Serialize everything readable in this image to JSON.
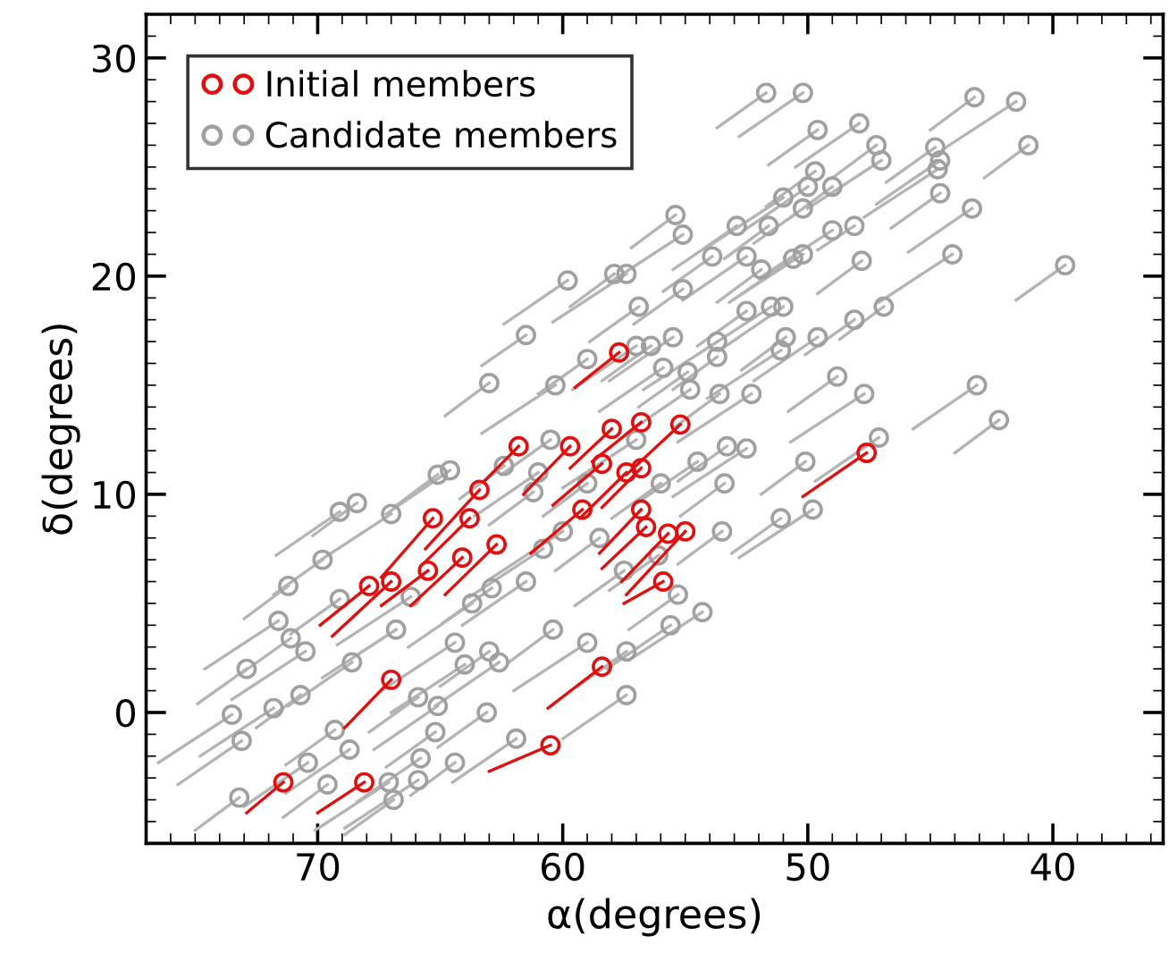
{
  "chart_data": {
    "type": "scatter",
    "xlabel": "α(degrees)",
    "ylabel": "δ(degrees)",
    "xlim": [
      77,
      35.5
    ],
    "xticks": [
      70,
      60,
      50,
      40
    ],
    "ylim": [
      -6,
      32
    ],
    "yticks": [
      0,
      10,
      20,
      30
    ],
    "grid": false,
    "legend": "top left",
    "marker": "circle",
    "series": [
      {
        "name": "Initial members",
        "color": "#e01010",
        "x": [
          57.7,
          56.8,
          55.2,
          58.0,
          59.7,
          61.8,
          58.4,
          56.8,
          57.4,
          63.4,
          65.3,
          63.8,
          59.2,
          56.8,
          62.7,
          64.1,
          55.0,
          56.6,
          55.7,
          55.9,
          65.5,
          67.0,
          67.9,
          47.6,
          67.0,
          58.4,
          60.5,
          71.4,
          68.1
        ],
        "values": [
          16.5,
          13.3,
          13.2,
          13.0,
          12.2,
          12.2,
          11.4,
          11.2,
          11.0,
          10.2,
          8.9,
          8.9,
          9.3,
          9.3,
          7.7,
          7.1,
          8.3,
          8.5,
          8.2,
          6.0,
          6.5,
          6.0,
          5.8,
          11.9,
          1.5,
          2.1,
          -1.5,
          -3.2,
          -3.2
        ]
      },
      {
        "type": "line",
        "marker": "none",
        "color": "#e01010",
        "x": [
          59.5,
          57.7,
          null,
          58.8,
          56.8,
          null,
          57.4,
          55.2,
          null,
          59.7,
          58.0,
          null,
          61.6,
          59.7,
          null,
          63.2,
          61.8,
          null,
          60.4,
          58.4,
          null,
          58.4,
          56.8,
          null,
          59.3,
          57.4,
          null,
          65.6,
          63.4,
          null,
          67.4,
          65.3,
          null,
          65.7,
          63.8,
          null,
          61.3,
          59.2,
          null,
          58.5,
          56.8,
          null,
          64.8,
          62.7,
          null,
          66.2,
          64.1,
          null,
          57.4,
          55.0,
          null,
          58.4,
          56.6,
          null,
          57.6,
          55.7,
          null,
          57.5,
          55.9,
          null,
          67.4,
          65.5,
          null,
          69.4,
          67.0,
          null,
          69.9,
          67.9,
          null,
          50.2,
          47.6,
          null,
          68.9,
          67.0,
          null,
          60.6,
          58.4,
          null,
          63.0,
          60.5,
          null,
          72.9,
          71.4,
          null,
          70.0,
          68.1
        ],
        "values": [
          14.9,
          16.5,
          null,
          11.5,
          13.3,
          null,
          10.9,
          13.2,
          null,
          11.2,
          13.0,
          null,
          10.0,
          12.2,
          null,
          10.6,
          12.2,
          null,
          9.5,
          11.4,
          null,
          9.4,
          11.2,
          null,
          8.9,
          11.0,
          null,
          7.5,
          10.2,
          null,
          6.2,
          8.9,
          null,
          6.8,
          8.9,
          null,
          7.3,
          9.3,
          null,
          7.3,
          9.3,
          null,
          5.4,
          7.7,
          null,
          4.9,
          7.1,
          null,
          5.4,
          8.3,
          null,
          6.6,
          8.5,
          null,
          6.0,
          8.2,
          null,
          5.0,
          6.0,
          null,
          4.9,
          6.5,
          null,
          3.5,
          6.0,
          null,
          4.0,
          5.8,
          null,
          9.9,
          11.9,
          null,
          -0.7,
          1.5,
          null,
          0.2,
          2.1,
          null,
          -2.7,
          -1.5,
          null,
          -4.6,
          -3.2,
          null,
          -4.6,
          -3.2
        ]
      },
      {
        "name": "Candidate members",
        "color": "#a0a0a0",
        "x": [
          51.7,
          50.2,
          43.2,
          41.5,
          49.6,
          47.9,
          47.2,
          47.0,
          44.8,
          44.6,
          41.0,
          44.7,
          44.6,
          43.3,
          49.0,
          49.0,
          50.2,
          50.6,
          47.8,
          44.1,
          39.5,
          51.0,
          46.9,
          53.7,
          48.1,
          43.1,
          42.2,
          47.7,
          48.8,
          49.6,
          50.9,
          50.2,
          48.1,
          55.1,
          52.9,
          51.6,
          51.0,
          49.7,
          50.0,
          55.4,
          55.1,
          53.9,
          52.5,
          51.9,
          51.5,
          52.5,
          55.5,
          53.7,
          51.1,
          54.9,
          54.8,
          53.6,
          52.3,
          56.4,
          55.9,
          73.2,
          73.5,
          72.9,
          73.1,
          71.2,
          71.6,
          69.8,
          69.1,
          68.4,
          70.5,
          69.1,
          68.6,
          70.7,
          71.8,
          69.3,
          70.4,
          69.6,
          67.1,
          66.9,
          68.7,
          66.8,
          65.9,
          65.1,
          64.0,
          63.0,
          62.6,
          64.4,
          65.2,
          65.8,
          64.4,
          65.9,
          63.1,
          61.9,
          60.4,
          59.0,
          57.4,
          57.4,
          61.2,
          60.0,
          62.9,
          63.7,
          65.1,
          67.0,
          71.1,
          64.6,
          62.4,
          66.2,
          56.1,
          47.1,
          50.1,
          49.8,
          51.1,
          53.5,
          54.3,
          55.3,
          55.6,
          53.4,
          52.5,
          53.3,
          59.8,
          57.9,
          57.4,
          56.9,
          61.5,
          63.0,
          60.3,
          59.0,
          57.0,
          60.5,
          61.0,
          59.0,
          57.0,
          56.0,
          54.5,
          58.5,
          60.8,
          57.5,
          61.5
        ],
        "values": [
          28.4,
          28.4,
          28.2,
          28.0,
          26.7,
          27.0,
          26.0,
          25.3,
          25.9,
          25.3,
          26.0,
          24.9,
          23.8,
          23.1,
          24.1,
          22.1,
          23.1,
          20.8,
          20.7,
          21.0,
          20.5,
          18.6,
          18.6,
          17.0,
          18.0,
          15.0,
          13.4,
          14.6,
          15.4,
          17.2,
          17.2,
          21.0,
          22.3,
          19.4,
          22.3,
          22.3,
          23.6,
          24.8,
          24.1,
          22.8,
          21.9,
          20.9,
          20.9,
          20.3,
          18.6,
          18.4,
          17.2,
          16.3,
          16.6,
          15.6,
          14.8,
          14.6,
          14.6,
          16.8,
          15.8,
          -3.9,
          -0.1,
          2.0,
          -1.3,
          5.8,
          4.2,
          7.0,
          9.2,
          9.6,
          2.8,
          5.2,
          2.3,
          0.8,
          0.2,
          -0.8,
          -2.3,
          -3.3,
          -3.2,
          -4.0,
          -1.7,
          3.8,
          0.7,
          0.3,
          2.2,
          2.8,
          2.3,
          3.2,
          -0.9,
          -2.1,
          -2.3,
          -3.1,
          0.0,
          -1.2,
          3.8,
          3.2,
          2.8,
          0.8,
          10.1,
          8.3,
          5.7,
          5.0,
          10.9,
          9.1,
          3.4,
          11.1,
          11.3,
          5.3,
          7.2,
          12.6,
          11.5,
          9.3,
          8.9,
          8.3,
          4.6,
          5.4,
          4.0,
          10.5,
          12.1,
          12.2,
          19.8,
          20.1,
          20.1,
          18.6,
          17.3,
          15.1,
          15.0,
          16.2,
          16.8,
          12.5,
          11.0,
          10.5,
          12.5,
          10.5,
          11.5,
          8.0,
          7.5,
          6.5,
          6.0
        ]
      },
      {
        "type": "line",
        "marker": "none",
        "color": "#b4b4b4",
        "x": [
          53.7,
          51.7,
          null,
          52.8,
          50.2,
          null,
          45.0,
          43.2,
          null,
          44.5,
          41.5,
          null,
          51.6,
          49.6,
          null,
          50.5,
          47.9,
          null,
          49.0,
          47.2,
          null,
          50.0,
          47.0,
          null,
          46.8,
          44.8,
          null,
          47.2,
          44.6,
          null,
          42.8,
          41.0,
          null,
          47.7,
          44.7,
          null,
          46.6,
          44.6,
          null,
          45.9,
          43.3,
          null,
          50.8,
          49.0,
          null,
          52.0,
          49.0,
          null,
          52.2,
          50.2,
          null,
          53.2,
          50.6,
          null,
          49.6,
          47.8,
          null,
          47.1,
          44.1,
          null,
          41.5,
          39.5,
          null,
          53.6,
          51.0,
          null,
          48.7,
          46.9,
          null,
          56.7,
          53.7,
          null,
          50.1,
          48.1,
          null,
          45.7,
          43.1,
          null,
          44.0,
          42.2,
          null,
          50.7,
          47.7,
          null,
          50.8,
          48.8,
          null,
          52.2,
          49.6,
          null,
          52.7,
          50.9,
          null,
          53.2,
          50.2,
          null,
          49.6,
          48.1,
          null,
          57.1,
          55.1,
          null,
          55.5,
          52.9,
          null,
          53.4,
          51.6,
          null,
          54.0,
          51.0,
          null,
          51.7,
          49.7,
          null,
          52.6,
          50.0,
          null,
          57.2,
          55.4,
          null,
          58.1,
          55.1,
          null,
          55.9,
          53.9,
          null,
          55.1,
          52.5,
          null,
          53.7,
          51.9,
          null,
          54.5,
          51.5,
          null,
          54.5,
          52.5,
          null,
          58.1,
          55.5,
          null,
          55.5,
          53.7,
          null,
          54.1,
          51.1,
          null,
          56.9,
          54.9,
          null,
          57.4,
          54.8,
          null,
          55.4,
          53.6,
          null,
          55.3,
          52.3,
          null,
          58.4,
          56.4,
          null,
          58.5,
          55.9,
          null,
          75.0,
          73.2,
          null,
          76.5,
          73.5,
          null,
          74.9,
          72.9,
          null,
          75.7,
          73.1,
          null,
          73.0,
          71.2,
          null,
          74.6,
          71.6,
          null,
          71.8,
          69.8,
          null,
          71.7,
          69.1,
          null,
          70.2,
          68.4,
          null,
          73.5,
          70.5,
          null,
          71.1,
          69.1,
          null,
          71.2,
          68.6,
          null,
          72.5,
          70.7,
          null,
          74.8,
          71.8,
          null,
          71.3,
          69.3,
          null,
          73.0,
          70.4,
          null,
          71.4,
          69.6,
          null,
          70.1,
          67.1,
          null,
          68.9,
          66.9,
          null,
          71.3,
          68.7,
          null,
          69.8,
          66.8,
          null,
          67.9,
          65.9,
          null,
          67.7,
          65.1,
          null,
          67.0,
          64.0,
          null,
          65.0,
          63.0,
          null,
          65.2,
          62.6,
          null,
          67.4,
          64.4,
          null,
          67.2,
          65.2,
          null,
          68.4,
          65.8,
          null,
          66.2,
          64.4,
          null,
          68.9,
          65.9,
          null,
          65.1,
          63.1,
          null,
          64.5,
          61.9,
          null,
          62.2,
          60.4,
          null,
          62.0,
          59.0,
          null,
          59.4,
          57.4,
          null,
          60.0,
          57.4,
          null,
          63.0,
          61.2,
          null,
          63.0,
          60.0,
          null,
          64.9,
          62.9,
          null,
          66.3,
          63.7,
          null,
          66.9,
          65.1,
          null,
          70.0,
          67.0,
          null,
          73.1,
          71.1,
          null,
          67.2,
          64.6,
          null,
          64.2,
          62.4,
          null,
          69.2,
          66.2,
          null,
          58.1,
          56.1,
          null,
          49.7,
          47.1,
          null,
          51.9,
          50.1,
          null,
          52.8,
          49.8,
          null,
          53.1,
          51.1,
          null,
          55.3,
          53.5,
          null,
          57.3,
          54.3,
          null,
          57.3,
          55.3,
          null,
          58.2,
          55.6,
          null,
          55.2,
          53.4,
          null,
          55.5,
          52.5,
          null,
          55.3,
          53.3,
          null,
          62.4,
          59.8,
          null,
          59.7,
          57.9,
          null,
          60.4,
          57.4,
          null,
          58.9,
          56.9,
          null,
          63.3,
          61.5,
          null,
          64.8,
          63.0,
          null,
          63.3,
          60.3,
          null,
          61.0,
          59.0,
          null,
          59.6,
          57.0,
          null,
          62.5,
          60.5,
          null,
          63.6,
          61.0,
          null,
          60.8,
          59.0,
          null,
          60.0,
          57.0,
          null,
          58.0,
          56.0,
          null,
          57.1,
          54.5,
          null,
          60.3,
          58.5,
          null,
          63.8,
          60.8,
          null,
          59.5,
          57.5,
          null,
          64.1,
          61.5
        ],
        "values": [
          26.8,
          28.4,
          null,
          26.4,
          28.4,
          null,
          26.7,
          28.2,
          null,
          25.8,
          28.0,
          null,
          25.1,
          26.7,
          null,
          25.0,
          27.0,
          null,
          24.5,
          26.0,
          null,
          23.1,
          25.3,
          null,
          24.3,
          25.9,
          null,
          23.3,
          25.3,
          null,
          24.5,
          26.0,
          null,
          22.7,
          24.9,
          null,
          22.2,
          23.8,
          null,
          21.1,
          23.1,
          null,
          22.6,
          24.1,
          null,
          19.9,
          22.1,
          null,
          21.5,
          23.1,
          null,
          18.8,
          20.8,
          null,
          19.2,
          20.7,
          null,
          18.8,
          21.0,
          null,
          18.9,
          20.5,
          null,
          16.6,
          18.6,
          null,
          17.1,
          18.6,
          null,
          14.8,
          17.0,
          null,
          16.4,
          18.0,
          null,
          13.0,
          15.0,
          null,
          11.9,
          13.4,
          null,
          12.4,
          14.6,
          null,
          13.8,
          15.4,
          null,
          15.2,
          17.2,
          null,
          15.7,
          17.2,
          null,
          18.8,
          21.0,
          null,
          21.2,
          22.3,
          null,
          17.8,
          19.4,
          null,
          20.3,
          22.3,
          null,
          20.8,
          22.3,
          null,
          21.4,
          23.6,
          null,
          23.2,
          24.8,
          null,
          22.1,
          24.1,
          null,
          21.3,
          22.8,
          null,
          19.7,
          21.9,
          null,
          19.3,
          20.9,
          null,
          18.9,
          20.9,
          null,
          18.8,
          20.3,
          null,
          16.4,
          18.6,
          null,
          16.8,
          18.4,
          null,
          15.2,
          17.2,
          null,
          14.8,
          16.3,
          null,
          14.4,
          16.6,
          null,
          14.0,
          15.6,
          null,
          12.8,
          14.8,
          null,
          13.1,
          14.6,
          null,
          12.4,
          14.6,
          null,
          15.2,
          16.8,
          null,
          13.8,
          15.8,
          null,
          -5.4,
          -3.9,
          null,
          -2.3,
          -0.1,
          null,
          0.4,
          2.0,
          null,
          -3.3,
          -1.3,
          null,
          4.3,
          5.8,
          null,
          2.0,
          4.2,
          null,
          5.4,
          7.0,
          null,
          7.2,
          9.2,
          null,
          8.1,
          9.6,
          null,
          0.6,
          2.8,
          null,
          3.6,
          5.2,
          null,
          0.3,
          2.3,
          null,
          -0.7,
          0.8,
          null,
          -2.0,
          0.2,
          null,
          -2.4,
          -0.8,
          null,
          -4.3,
          -2.3,
          null,
          -4.8,
          -3.3,
          null,
          -5.4,
          -3.2,
          null,
          -5.6,
          -4.0,
          null,
          -3.7,
          -1.7,
          null,
          1.6,
          3.8,
          null,
          -0.9,
          0.7,
          null,
          -1.7,
          0.3,
          null,
          0.0,
          2.2,
          null,
          1.2,
          2.8,
          null,
          0.3,
          2.3,
          null,
          1.0,
          3.2,
          null,
          -2.5,
          -0.9,
          null,
          -4.1,
          -2.1,
          null,
          -3.8,
          -2.3,
          null,
          -5.3,
          -3.1,
          null,
          -1.6,
          0.0,
          null,
          -3.2,
          -1.2,
          null,
          2.3,
          3.8,
          null,
          1.0,
          3.2,
          null,
          1.2,
          2.8,
          null,
          -1.2,
          0.8,
          null,
          8.6,
          10.1,
          null,
          6.1,
          8.3,
          null,
          4.1,
          5.7,
          null,
          3.0,
          5.0,
          null,
          9.4,
          10.9,
          null,
          6.9,
          9.1,
          null,
          1.8,
          3.4,
          null,
          9.1,
          11.1,
          null,
          9.8,
          11.3,
          null,
          3.1,
          5.3,
          null,
          5.6,
          7.2,
          null,
          10.6,
          12.6,
          null,
          10.0,
          11.5,
          null,
          7.1,
          9.3,
          null,
          7.3,
          8.9,
          null,
          6.8,
          8.3,
          null,
          2.4,
          4.6,
          null,
          3.8,
          5.4,
          null,
          2.0,
          4.0,
          null,
          9.0,
          10.5,
          null,
          9.9,
          12.1,
          null,
          10.6,
          12.2,
          null,
          17.8,
          19.8,
          null,
          18.6,
          20.1,
          null,
          17.9,
          20.1,
          null,
          17.0,
          18.6,
          null,
          15.9,
          17.3,
          null,
          13.6,
          15.1,
          null,
          12.8,
          15.0,
          null,
          14.6,
          16.2,
          null,
          14.8,
          16.8,
          null,
          10.9,
          12.5,
          null,
          9.0,
          11.0,
          null,
          9.0,
          10.5,
          null,
          10.3,
          12.5,
          null,
          8.9,
          10.5,
          null,
          9.5,
          11.5,
          null,
          6.5,
          8.0,
          null,
          5.3,
          7.5,
          null,
          4.9,
          6.5,
          null,
          4.0,
          6.0
        ]
      }
    ]
  }
}
